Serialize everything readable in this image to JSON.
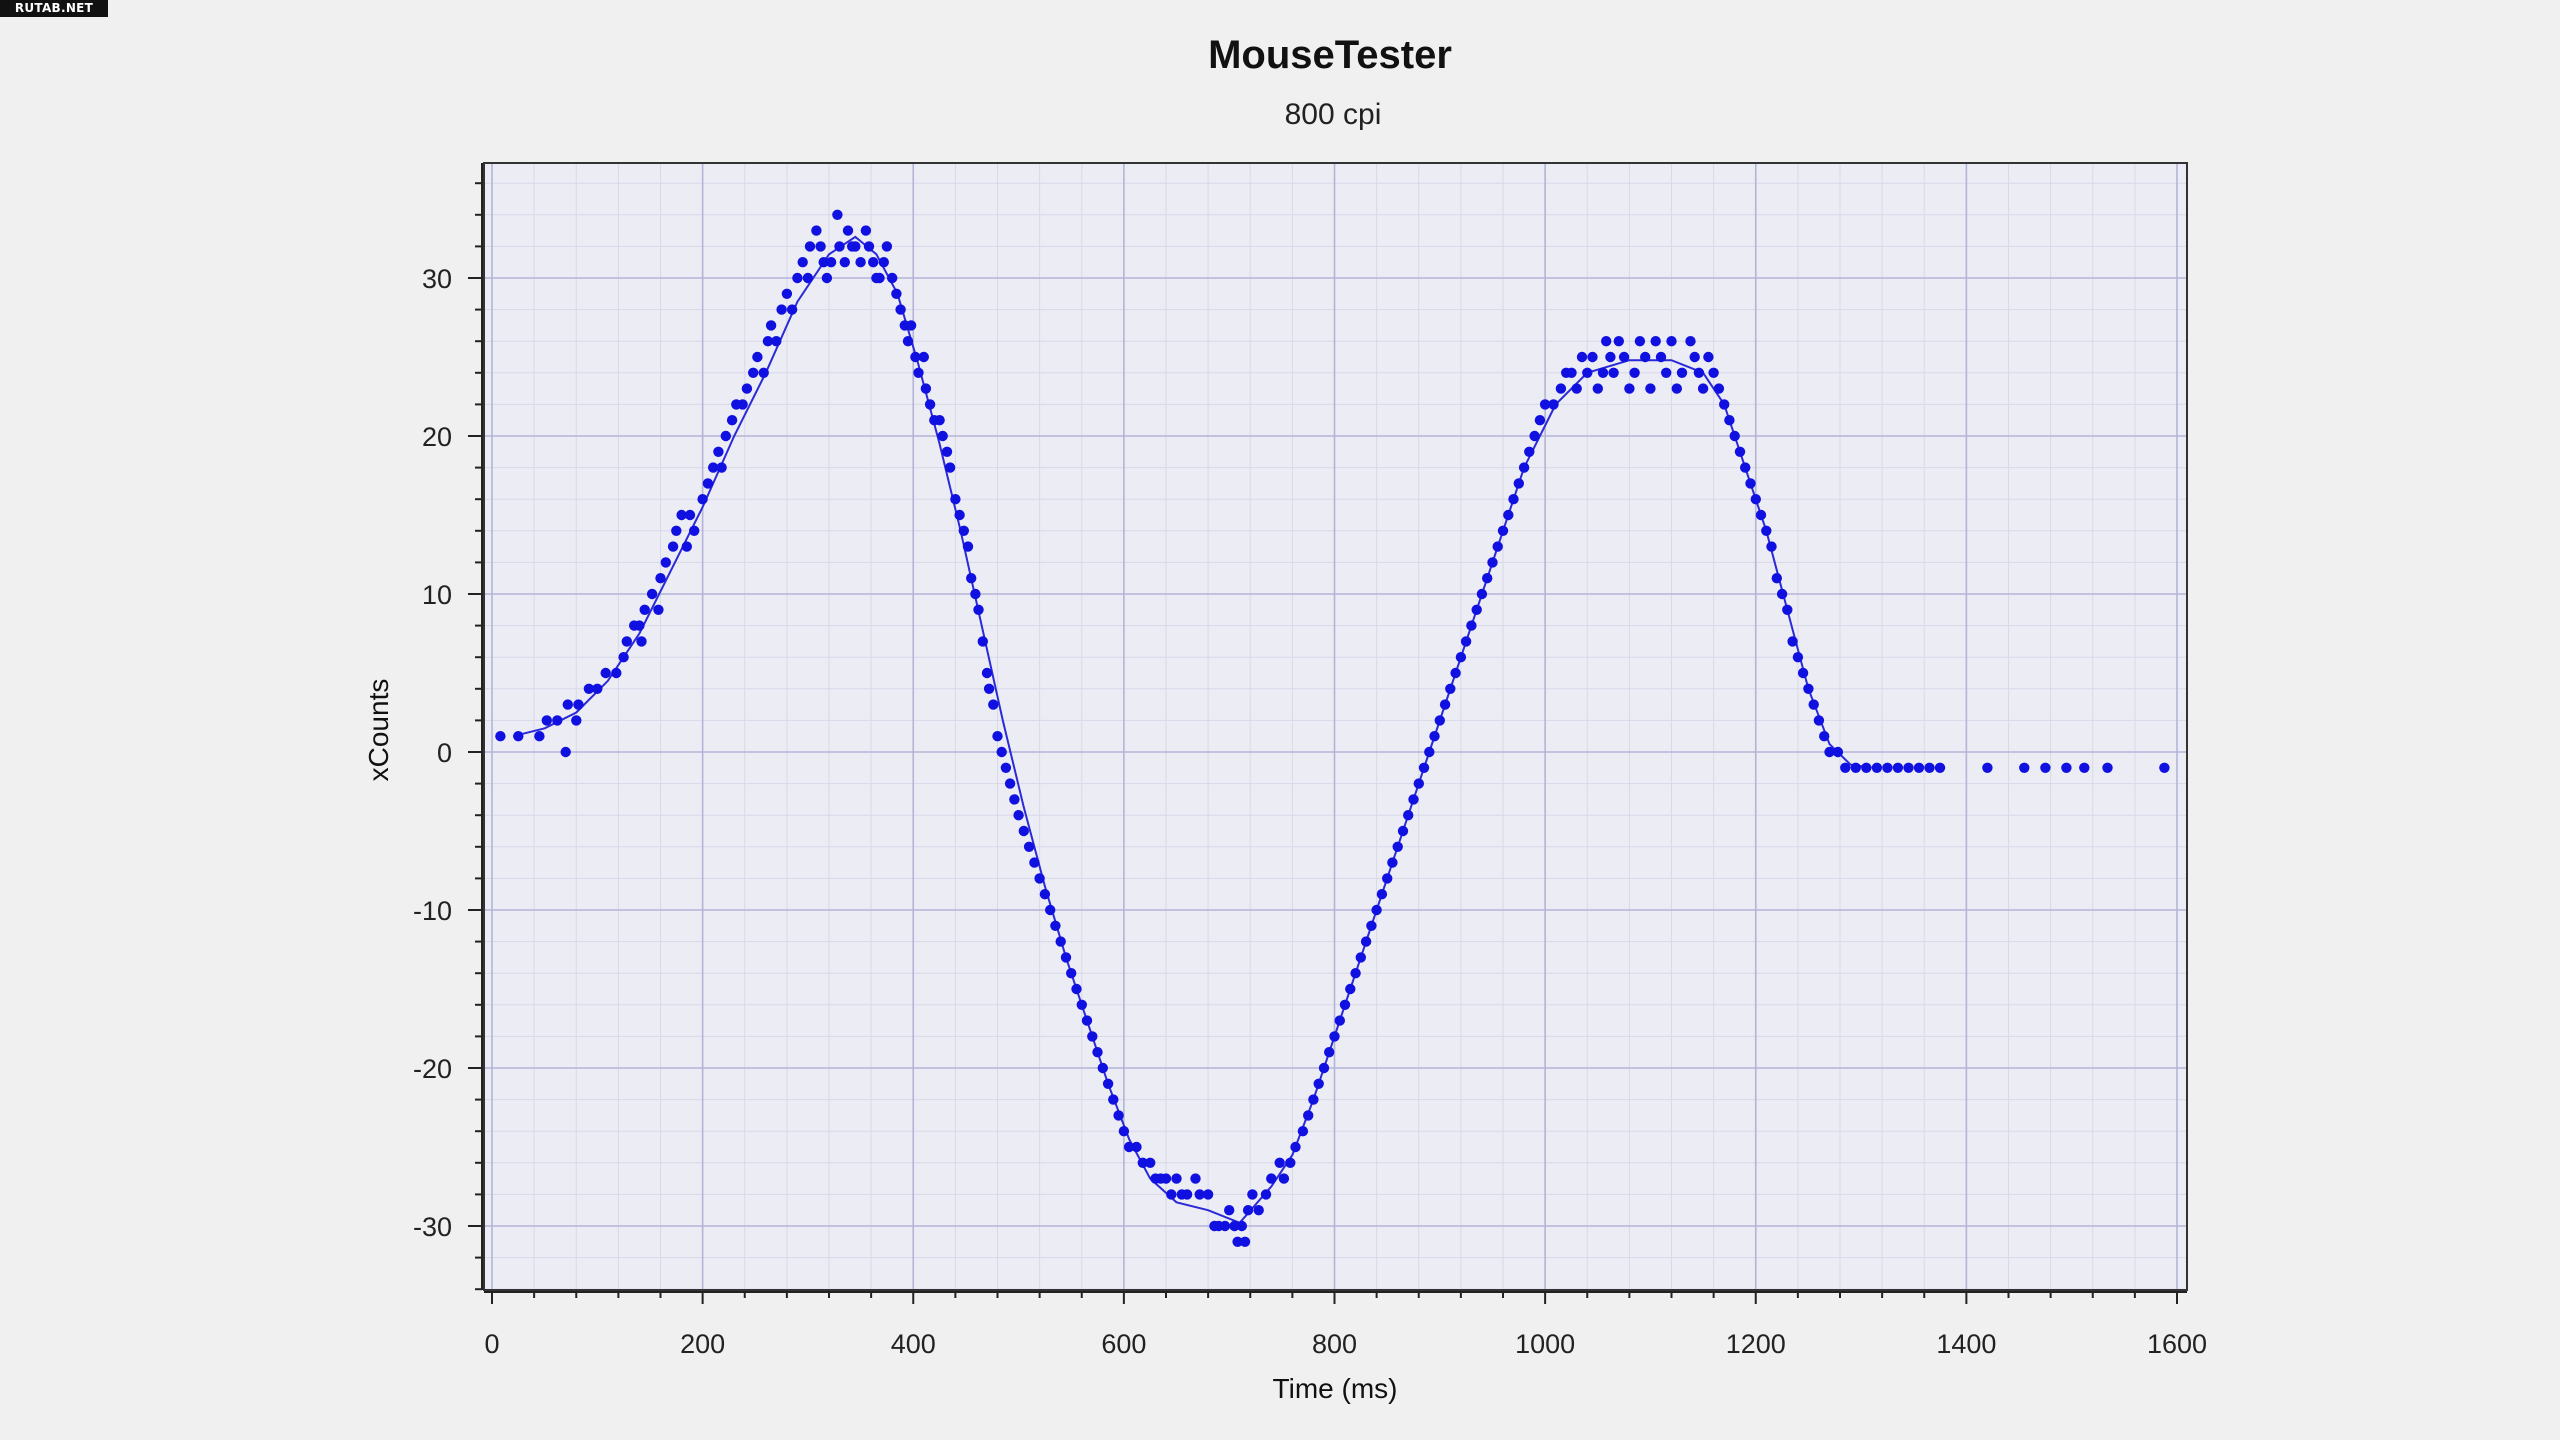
{
  "watermark": "RUTAB.NET",
  "chart_data": {
    "type": "scatter",
    "title": "MouseTester",
    "subtitle": "800 cpi",
    "xlabel": "Time (ms)",
    "ylabel": "xCounts",
    "xlim": [
      0,
      1600
    ],
    "ylim": [
      -34,
      37
    ],
    "xticks": [
      0,
      200,
      400,
      600,
      800,
      1000,
      1200,
      1400,
      1600
    ],
    "yticks": [
      -30,
      -20,
      -10,
      0,
      10,
      20,
      30
    ],
    "grid": true,
    "colors": {
      "points": "#1010e0",
      "line": "#2a2ad8",
      "plot_bg": "#ececf4",
      "grid_major": "#b4b4d8",
      "grid_minor": "#d8d8ea",
      "page_bg": "#f0f0f0"
    },
    "series": [
      {
        "type": "scatter",
        "points": [
          [
            8,
            1
          ],
          [
            25,
            1
          ],
          [
            45,
            1
          ],
          [
            52,
            2
          ],
          [
            62,
            2
          ],
          [
            70,
            0
          ],
          [
            72,
            3
          ],
          [
            80,
            2
          ],
          [
            82,
            3
          ],
          [
            92,
            4
          ],
          [
            100,
            4
          ],
          [
            108,
            5
          ],
          [
            118,
            5
          ],
          [
            125,
            6
          ],
          [
            128,
            7
          ],
          [
            135,
            8
          ],
          [
            140,
            8
          ],
          [
            142,
            7
          ],
          [
            145,
            9
          ],
          [
            152,
            10
          ],
          [
            160,
            11
          ],
          [
            158,
            9
          ],
          [
            165,
            12
          ],
          [
            172,
            13
          ],
          [
            175,
            14
          ],
          [
            180,
            15
          ],
          [
            185,
            13
          ],
          [
            188,
            15
          ],
          [
            192,
            14
          ],
          [
            200,
            16
          ],
          [
            205,
            17
          ],
          [
            210,
            18
          ],
          [
            215,
            19
          ],
          [
            218,
            18
          ],
          [
            222,
            20
          ],
          [
            228,
            21
          ],
          [
            232,
            22
          ],
          [
            238,
            22
          ],
          [
            242,
            23
          ],
          [
            248,
            24
          ],
          [
            252,
            25
          ],
          [
            258,
            24
          ],
          [
            262,
            26
          ],
          [
            265,
            27
          ],
          [
            270,
            26
          ],
          [
            275,
            28
          ],
          [
            280,
            29
          ],
          [
            285,
            28
          ],
          [
            290,
            30
          ],
          [
            295,
            31
          ],
          [
            300,
            30
          ],
          [
            302,
            32
          ],
          [
            308,
            33
          ],
          [
            312,
            32
          ],
          [
            315,
            31
          ],
          [
            318,
            30
          ],
          [
            322,
            31
          ],
          [
            328,
            34
          ],
          [
            330,
            32
          ],
          [
            335,
            31
          ],
          [
            338,
            33
          ],
          [
            342,
            32
          ],
          [
            345,
            32
          ],
          [
            350,
            31
          ],
          [
            355,
            33
          ],
          [
            358,
            32
          ],
          [
            362,
            31
          ],
          [
            365,
            30
          ],
          [
            368,
            30
          ],
          [
            372,
            31
          ],
          [
            375,
            32
          ],
          [
            380,
            30
          ],
          [
            384,
            29
          ],
          [
            388,
            28
          ],
          [
            392,
            27
          ],
          [
            395,
            26
          ],
          [
            398,
            27
          ],
          [
            402,
            25
          ],
          [
            405,
            24
          ],
          [
            410,
            25
          ],
          [
            412,
            23
          ],
          [
            416,
            22
          ],
          [
            420,
            21
          ],
          [
            425,
            21
          ],
          [
            428,
            20
          ],
          [
            432,
            19
          ],
          [
            435,
            18
          ],
          [
            440,
            16
          ],
          [
            444,
            15
          ],
          [
            448,
            14
          ],
          [
            452,
            13
          ],
          [
            455,
            11
          ],
          [
            459,
            10
          ],
          [
            462,
            9
          ],
          [
            466,
            7
          ],
          [
            470,
            5
          ],
          [
            472,
            4
          ],
          [
            476,
            3
          ],
          [
            480,
            1
          ],
          [
            484,
            0
          ],
          [
            488,
            -1
          ],
          [
            492,
            -2
          ],
          [
            496,
            -3
          ],
          [
            500,
            -4
          ],
          [
            505,
            -5
          ],
          [
            510,
            -6
          ],
          [
            515,
            -7
          ],
          [
            520,
            -8
          ],
          [
            525,
            -9
          ],
          [
            530,
            -10
          ],
          [
            535,
            -11
          ],
          [
            540,
            -12
          ],
          [
            545,
            -13
          ],
          [
            550,
            -14
          ],
          [
            555,
            -15
          ],
          [
            560,
            -16
          ],
          [
            565,
            -17
          ],
          [
            570,
            -18
          ],
          [
            575,
            -19
          ],
          [
            580,
            -20
          ],
          [
            585,
            -21
          ],
          [
            590,
            -22
          ],
          [
            595,
            -23
          ],
          [
            600,
            -24
          ],
          [
            605,
            -25
          ],
          [
            612,
            -25
          ],
          [
            618,
            -26
          ],
          [
            625,
            -26
          ],
          [
            630,
            -27
          ],
          [
            635,
            -27
          ],
          [
            640,
            -27
          ],
          [
            645,
            -28
          ],
          [
            650,
            -27
          ],
          [
            655,
            -28
          ],
          [
            660,
            -28
          ],
          [
            668,
            -27
          ],
          [
            672,
            -28
          ],
          [
            680,
            -28
          ],
          [
            686,
            -30
          ],
          [
            690,
            -30
          ],
          [
            696,
            -30
          ],
          [
            700,
            -29
          ],
          [
            705,
            -30
          ],
          [
            708,
            -31
          ],
          [
            712,
            -30
          ],
          [
            715,
            -31
          ],
          [
            718,
            -29
          ],
          [
            722,
            -28
          ],
          [
            728,
            -29
          ],
          [
            735,
            -28
          ],
          [
            740,
            -27
          ],
          [
            748,
            -26
          ],
          [
            752,
            -27
          ],
          [
            758,
            -26
          ],
          [
            763,
            -25
          ],
          [
            770,
            -24
          ],
          [
            775,
            -23
          ],
          [
            780,
            -22
          ],
          [
            785,
            -21
          ],
          [
            790,
            -20
          ],
          [
            795,
            -19
          ],
          [
            800,
            -18
          ],
          [
            805,
            -17
          ],
          [
            810,
            -16
          ],
          [
            815,
            -15
          ],
          [
            820,
            -14
          ],
          [
            825,
            -13
          ],
          [
            830,
            -12
          ],
          [
            835,
            -11
          ],
          [
            840,
            -10
          ],
          [
            845,
            -9
          ],
          [
            850,
            -8
          ],
          [
            855,
            -7
          ],
          [
            860,
            -6
          ],
          [
            865,
            -5
          ],
          [
            870,
            -4
          ],
          [
            875,
            -3
          ],
          [
            880,
            -2
          ],
          [
            885,
            -1
          ],
          [
            890,
            0
          ],
          [
            895,
            1
          ],
          [
            900,
            2
          ],
          [
            905,
            3
          ],
          [
            910,
            4
          ],
          [
            915,
            5
          ],
          [
            920,
            6
          ],
          [
            925,
            7
          ],
          [
            930,
            8
          ],
          [
            935,
            9
          ],
          [
            940,
            10
          ],
          [
            945,
            11
          ],
          [
            950,
            12
          ],
          [
            955,
            13
          ],
          [
            960,
            14
          ],
          [
            965,
            15
          ],
          [
            970,
            16
          ],
          [
            975,
            17
          ],
          [
            980,
            18
          ],
          [
            985,
            19
          ],
          [
            990,
            20
          ],
          [
            995,
            21
          ],
          [
            1000,
            22
          ],
          [
            1008,
            22
          ],
          [
            1015,
            23
          ],
          [
            1020,
            24
          ],
          [
            1025,
            24
          ],
          [
            1030,
            23
          ],
          [
            1035,
            25
          ],
          [
            1040,
            24
          ],
          [
            1045,
            25
          ],
          [
            1050,
            23
          ],
          [
            1055,
            24
          ],
          [
            1058,
            26
          ],
          [
            1062,
            25
          ],
          [
            1065,
            24
          ],
          [
            1070,
            26
          ],
          [
            1075,
            25
          ],
          [
            1080,
            23
          ],
          [
            1085,
            24
          ],
          [
            1090,
            26
          ],
          [
            1095,
            25
          ],
          [
            1100,
            23
          ],
          [
            1105,
            26
          ],
          [
            1110,
            25
          ],
          [
            1115,
            24
          ],
          [
            1120,
            26
          ],
          [
            1125,
            23
          ],
          [
            1130,
            24
          ],
          [
            1138,
            26
          ],
          [
            1142,
            25
          ],
          [
            1146,
            24
          ],
          [
            1150,
            23
          ],
          [
            1155,
            25
          ],
          [
            1160,
            24
          ],
          [
            1165,
            23
          ],
          [
            1170,
            22
          ],
          [
            1175,
            21
          ],
          [
            1180,
            20
          ],
          [
            1185,
            19
          ],
          [
            1190,
            18
          ],
          [
            1195,
            17
          ],
          [
            1200,
            16
          ],
          [
            1205,
            15
          ],
          [
            1210,
            14
          ],
          [
            1215,
            13
          ],
          [
            1220,
            11
          ],
          [
            1225,
            10
          ],
          [
            1230,
            9
          ],
          [
            1235,
            7
          ],
          [
            1240,
            6
          ],
          [
            1245,
            5
          ],
          [
            1250,
            4
          ],
          [
            1255,
            3
          ],
          [
            1260,
            2
          ],
          [
            1265,
            1
          ],
          [
            1270,
            0
          ],
          [
            1278,
            0
          ],
          [
            1285,
            -1
          ],
          [
            1295,
            -1
          ],
          [
            1305,
            -1
          ],
          [
            1315,
            -1
          ],
          [
            1325,
            -1
          ],
          [
            1335,
            -1
          ],
          [
            1345,
            -1
          ],
          [
            1355,
            -1
          ],
          [
            1365,
            -1
          ],
          [
            1375,
            -1
          ],
          [
            1420,
            -1
          ],
          [
            1455,
            -1
          ],
          [
            1475,
            -1
          ],
          [
            1495,
            -1
          ],
          [
            1512,
            -1
          ],
          [
            1534,
            -1
          ],
          [
            1588,
            -1
          ]
        ]
      },
      {
        "type": "line",
        "points": [
          [
            20,
            1
          ],
          [
            50,
            1.5
          ],
          [
            80,
            2.5
          ],
          [
            110,
            4.5
          ],
          [
            140,
            7.5
          ],
          [
            170,
            11.5
          ],
          [
            200,
            15.5
          ],
          [
            230,
            20
          ],
          [
            260,
            24
          ],
          [
            290,
            28.5
          ],
          [
            320,
            31.5
          ],
          [
            345,
            32.6
          ],
          [
            365,
            31.5
          ],
          [
            385,
            29
          ],
          [
            405,
            24.5
          ],
          [
            425,
            19.5
          ],
          [
            445,
            14
          ],
          [
            465,
            8
          ],
          [
            485,
            2
          ],
          [
            505,
            -3.5
          ],
          [
            525,
            -8.5
          ],
          [
            545,
            -13
          ],
          [
            565,
            -17
          ],
          [
            585,
            -21
          ],
          [
            605,
            -24.5
          ],
          [
            625,
            -27
          ],
          [
            650,
            -28.5
          ],
          [
            680,
            -29
          ],
          [
            710,
            -29.8
          ],
          [
            740,
            -27.5
          ],
          [
            760,
            -25.5
          ],
          [
            780,
            -22
          ],
          [
            800,
            -18
          ],
          [
            830,
            -12
          ],
          [
            860,
            -6
          ],
          [
            890,
            0
          ],
          [
            920,
            6
          ],
          [
            950,
            12
          ],
          [
            980,
            18
          ],
          [
            1010,
            22
          ],
          [
            1040,
            24
          ],
          [
            1080,
            24.8
          ],
          [
            1120,
            24.8
          ],
          [
            1150,
            24
          ],
          [
            1170,
            22
          ],
          [
            1190,
            18
          ],
          [
            1210,
            14
          ],
          [
            1230,
            9
          ],
          [
            1250,
            4
          ],
          [
            1270,
            0.5
          ],
          [
            1290,
            -0.8
          ],
          [
            1310,
            -1
          ]
        ]
      }
    ]
  }
}
